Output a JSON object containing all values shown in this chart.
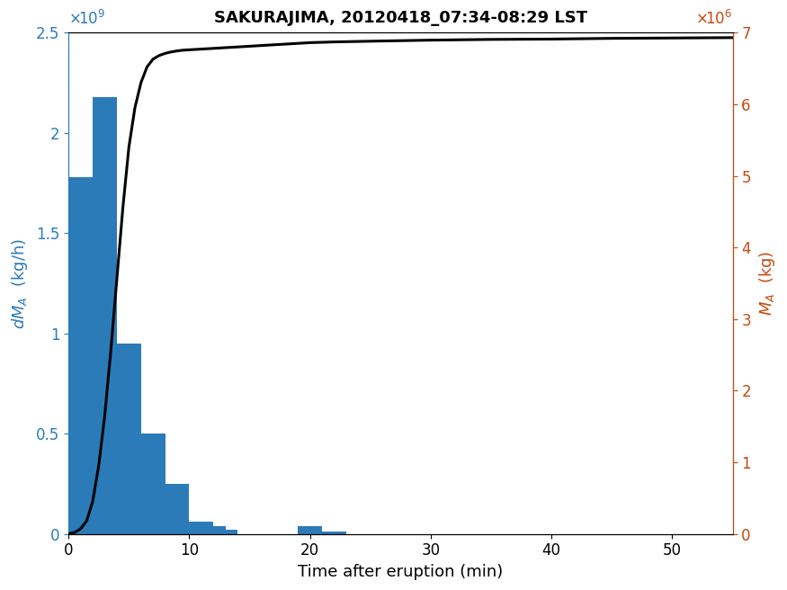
{
  "title": "SAKURAJIMA, 20120418_07:34-08:29 LST",
  "xlabel": "Time after eruption (min)",
  "ylabel_left": "dM_A (kg/h)",
  "ylabel_right": "M_A (kg)",
  "bar_lefts": [
    0,
    2,
    4,
    6,
    8,
    10,
    11,
    12,
    19,
    21
  ],
  "bar_heights": [
    1780000000.0,
    2180000000.0,
    950000000.0,
    500000000.0,
    250000000.0,
    60000000.0,
    40000000.0,
    20000000.0,
    40000000.0,
    10000000.0
  ],
  "bar_width": 2.0,
  "bar_color": "#2b7bb9",
  "line_color": "black",
  "line_width": 2.2,
  "xlim": [
    0,
    55
  ],
  "ylim_left": [
    0,
    2500000000.0
  ],
  "ylim_right": [
    0,
    7000000.0
  ],
  "xticks": [
    0,
    10,
    20,
    30,
    40,
    50
  ],
  "yticks_left": [
    0,
    500000000.0,
    1000000000.0,
    1500000000.0,
    2000000000.0,
    2500000000.0
  ],
  "yticks_right": [
    0,
    1000000.0,
    2000000.0,
    3000000.0,
    4000000.0,
    5000000.0,
    6000000.0,
    7000000.0
  ],
  "left_tick_labels": [
    "0",
    "0.5",
    "1",
    "1.5",
    "2",
    "2.5"
  ],
  "right_tick_labels": [
    "0",
    "1",
    "2",
    "3",
    "4",
    "5",
    "6",
    "7"
  ],
  "left_color": "#2b7bb9",
  "right_color": "#c8490a",
  "cumulative_x": [
    0,
    0.5,
    1.0,
    1.5,
    2.0,
    2.5,
    3.0,
    3.5,
    4.0,
    4.5,
    5.0,
    5.5,
    6.0,
    6.5,
    7.0,
    7.5,
    8.0,
    8.5,
    9.0,
    9.5,
    10.0,
    11.0,
    12.0,
    13.0,
    15.0,
    18.0,
    20.0,
    22.0,
    25.0,
    30.0,
    35.0,
    40.0,
    45.0,
    50.0,
    55.0
  ],
  "cumulative_y": [
    0,
    20000.0,
    70000.0,
    180000.0,
    450000.0,
    950000.0,
    1650000.0,
    2550000.0,
    3550000.0,
    4550000.0,
    5400000.0,
    5950000.0,
    6300000.0,
    6520000.0,
    6630000.0,
    6680000.0,
    6710000.0,
    6730000.0,
    6745000.0,
    6755000.0,
    6760000.0,
    6770000.0,
    6780000.0,
    6790000.0,
    6810000.0,
    6840000.0,
    6860000.0,
    6870000.0,
    6880000.0,
    6895000.0,
    6905000.0,
    6910000.0,
    6920000.0,
    6925000.0,
    6930000.0
  ]
}
